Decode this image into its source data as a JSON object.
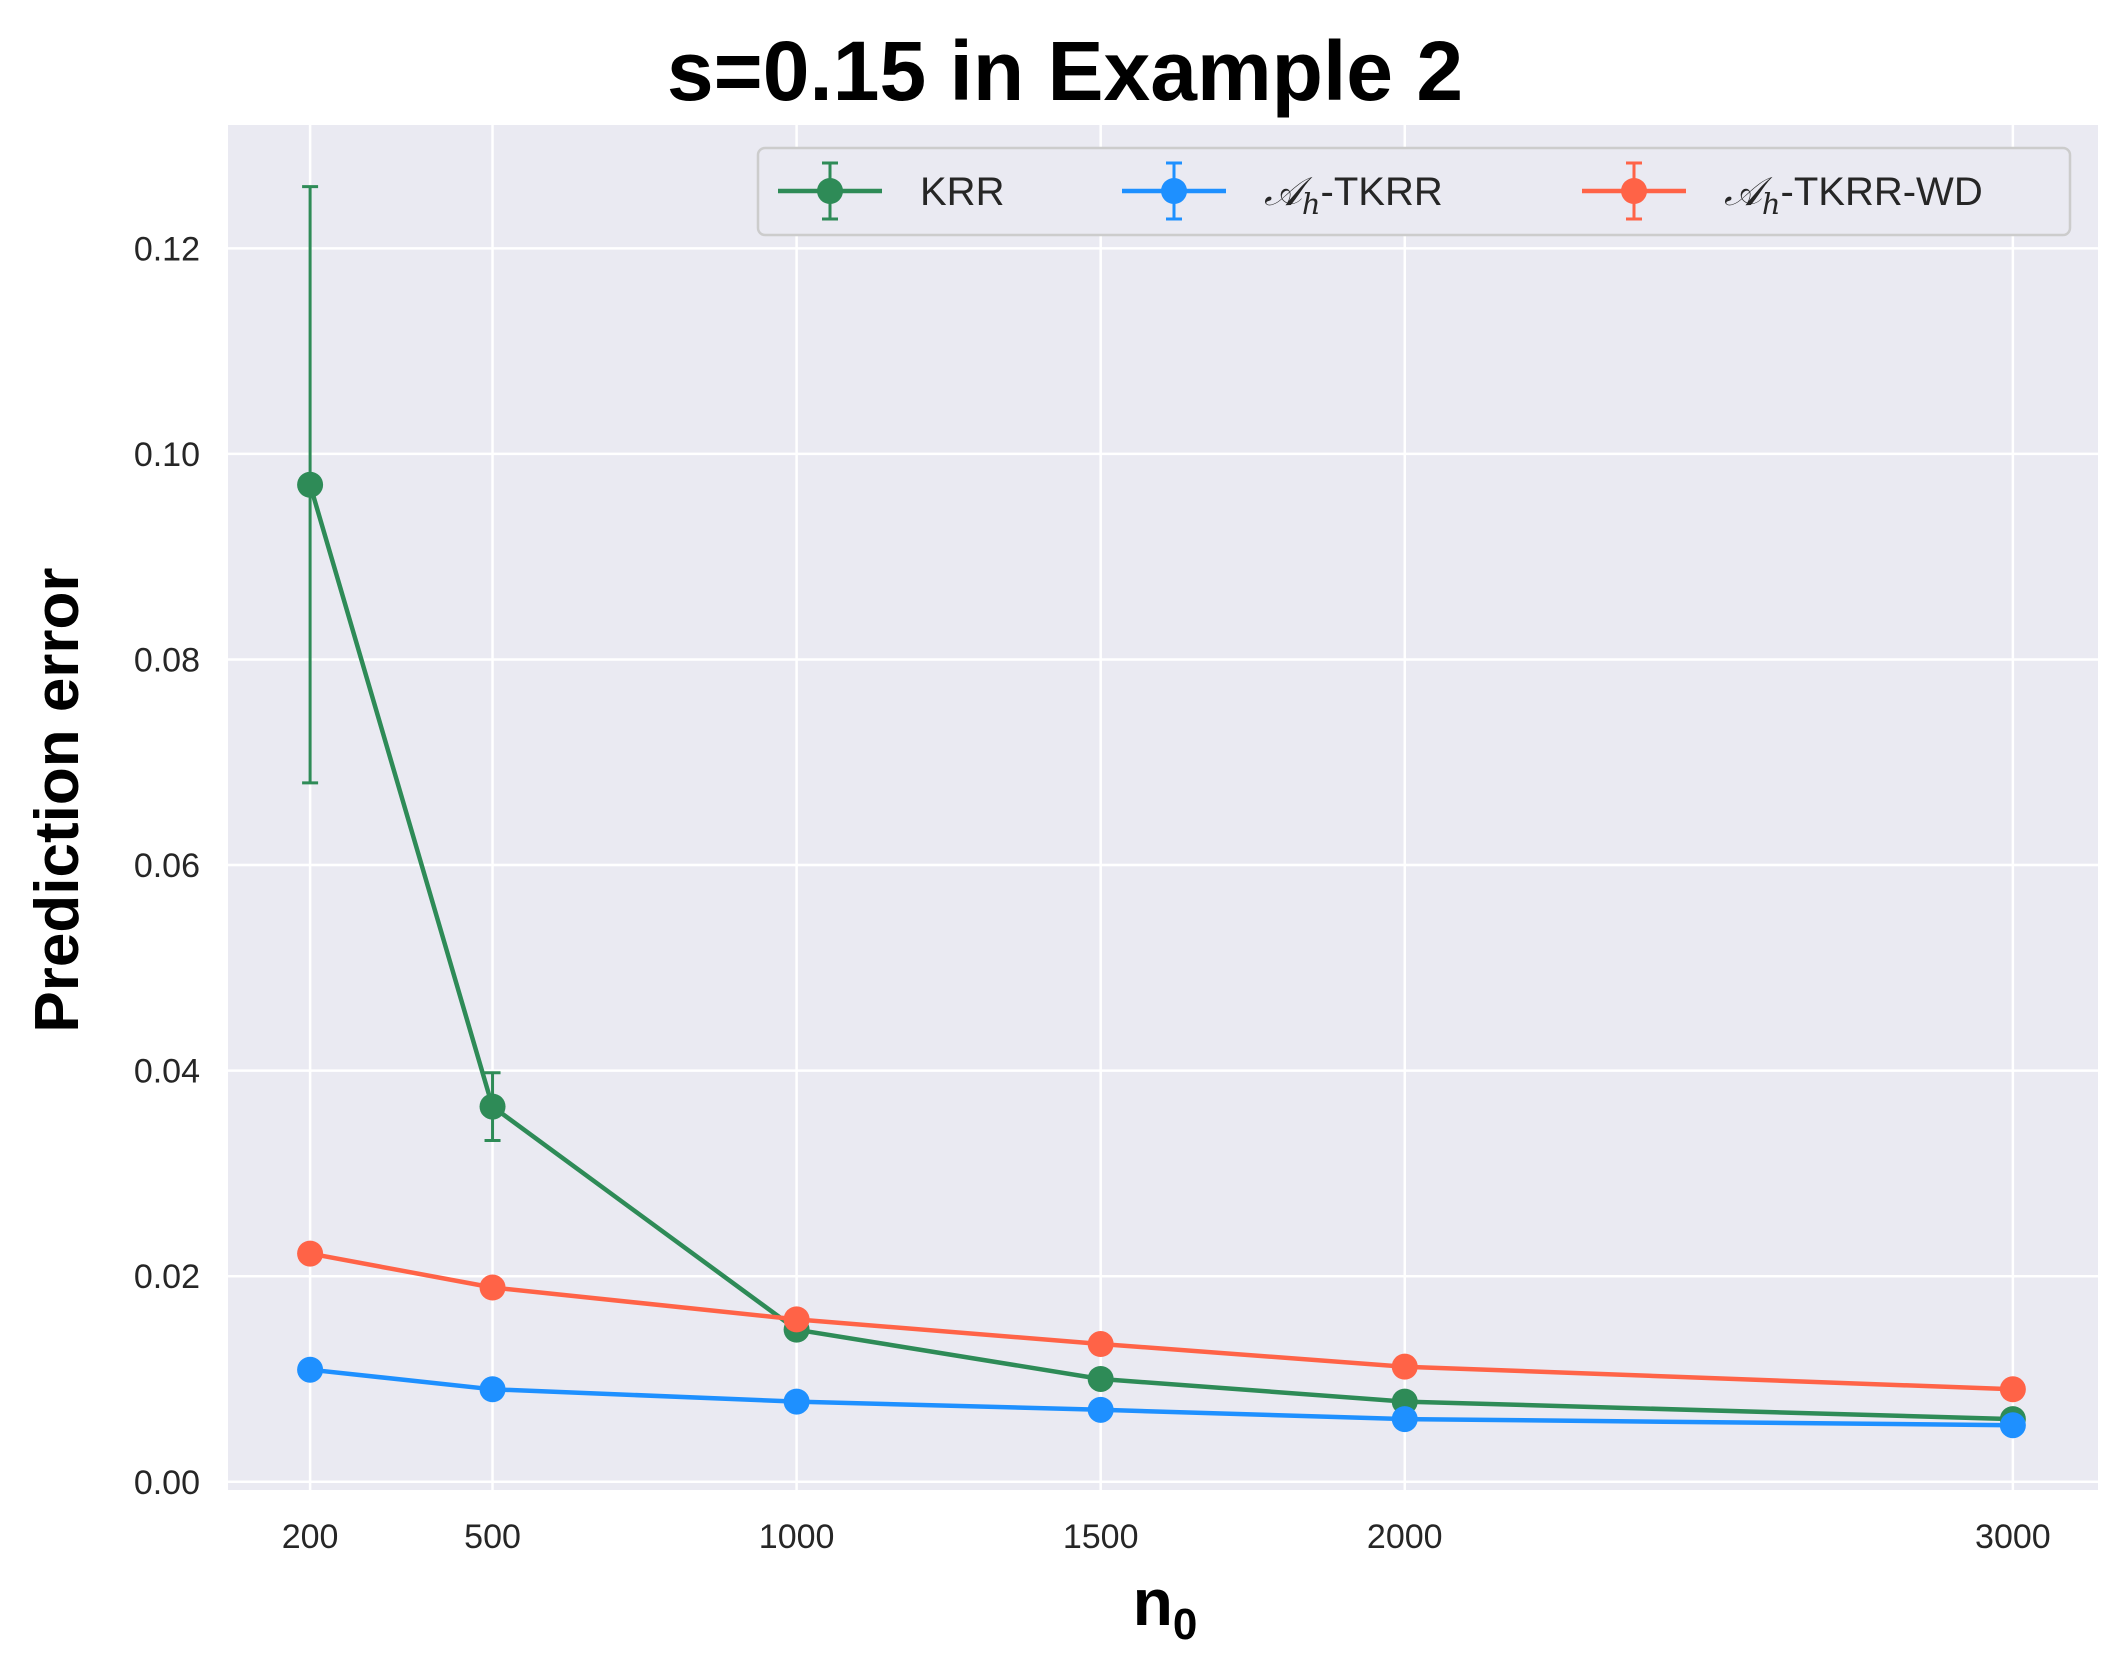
{
  "chart_data": {
    "type": "line",
    "title": "s=0.15 in Example 2",
    "xlabel": {
      "main": "n",
      "sub": "0"
    },
    "ylabel": "Prediction error",
    "x": [
      200,
      500,
      1000,
      1500,
      2000,
      3000
    ],
    "x_tick_labels": [
      "200",
      "500",
      "1000",
      "1500",
      "2000",
      "3000"
    ],
    "y_ticks": [
      0.0,
      0.02,
      0.04,
      0.06,
      0.08,
      0.1,
      0.12
    ],
    "y_tick_labels": [
      "0.00",
      "0.02",
      "0.04",
      "0.06",
      "0.08",
      "0.10",
      "0.12"
    ],
    "xlim": [
      65,
      3140
    ],
    "ylim": [
      -0.0008,
      0.132
    ],
    "grid": true,
    "legend_position": "top-right",
    "series": [
      {
        "name": "KRR",
        "legend": {
          "prefix": "",
          "suffix": "KRR"
        },
        "color": "#2e8b57",
        "values": [
          0.097,
          0.0365,
          0.0148,
          0.01,
          0.0078,
          0.0061
        ],
        "errors": [
          0.029,
          0.0033,
          0.0005,
          0.0004,
          0.0003,
          0.0002
        ]
      },
      {
        "name": "𝒜h-TKRR",
        "legend": {
          "prefix": "𝒜",
          "sub": "h",
          "suffix": "-TKRR"
        },
        "color": "#1e90ff",
        "values": [
          0.0109,
          0.009,
          0.0078,
          0.007,
          0.0061,
          0.0055
        ],
        "errors": [
          0.0004,
          0.0003,
          0.0002,
          0.0002,
          0.0002,
          0.0002
        ]
      },
      {
        "name": "𝒜h-TKRR-WD",
        "legend": {
          "prefix": "𝒜",
          "sub": "h",
          "suffix": "-TKRR-WD"
        },
        "color": "#ff6347",
        "values": [
          0.0222,
          0.0189,
          0.0158,
          0.0134,
          0.0112,
          0.009
        ],
        "errors": [
          0.0008,
          0.0004,
          0.0003,
          0.0003,
          0.0002,
          0.0002
        ]
      }
    ]
  }
}
